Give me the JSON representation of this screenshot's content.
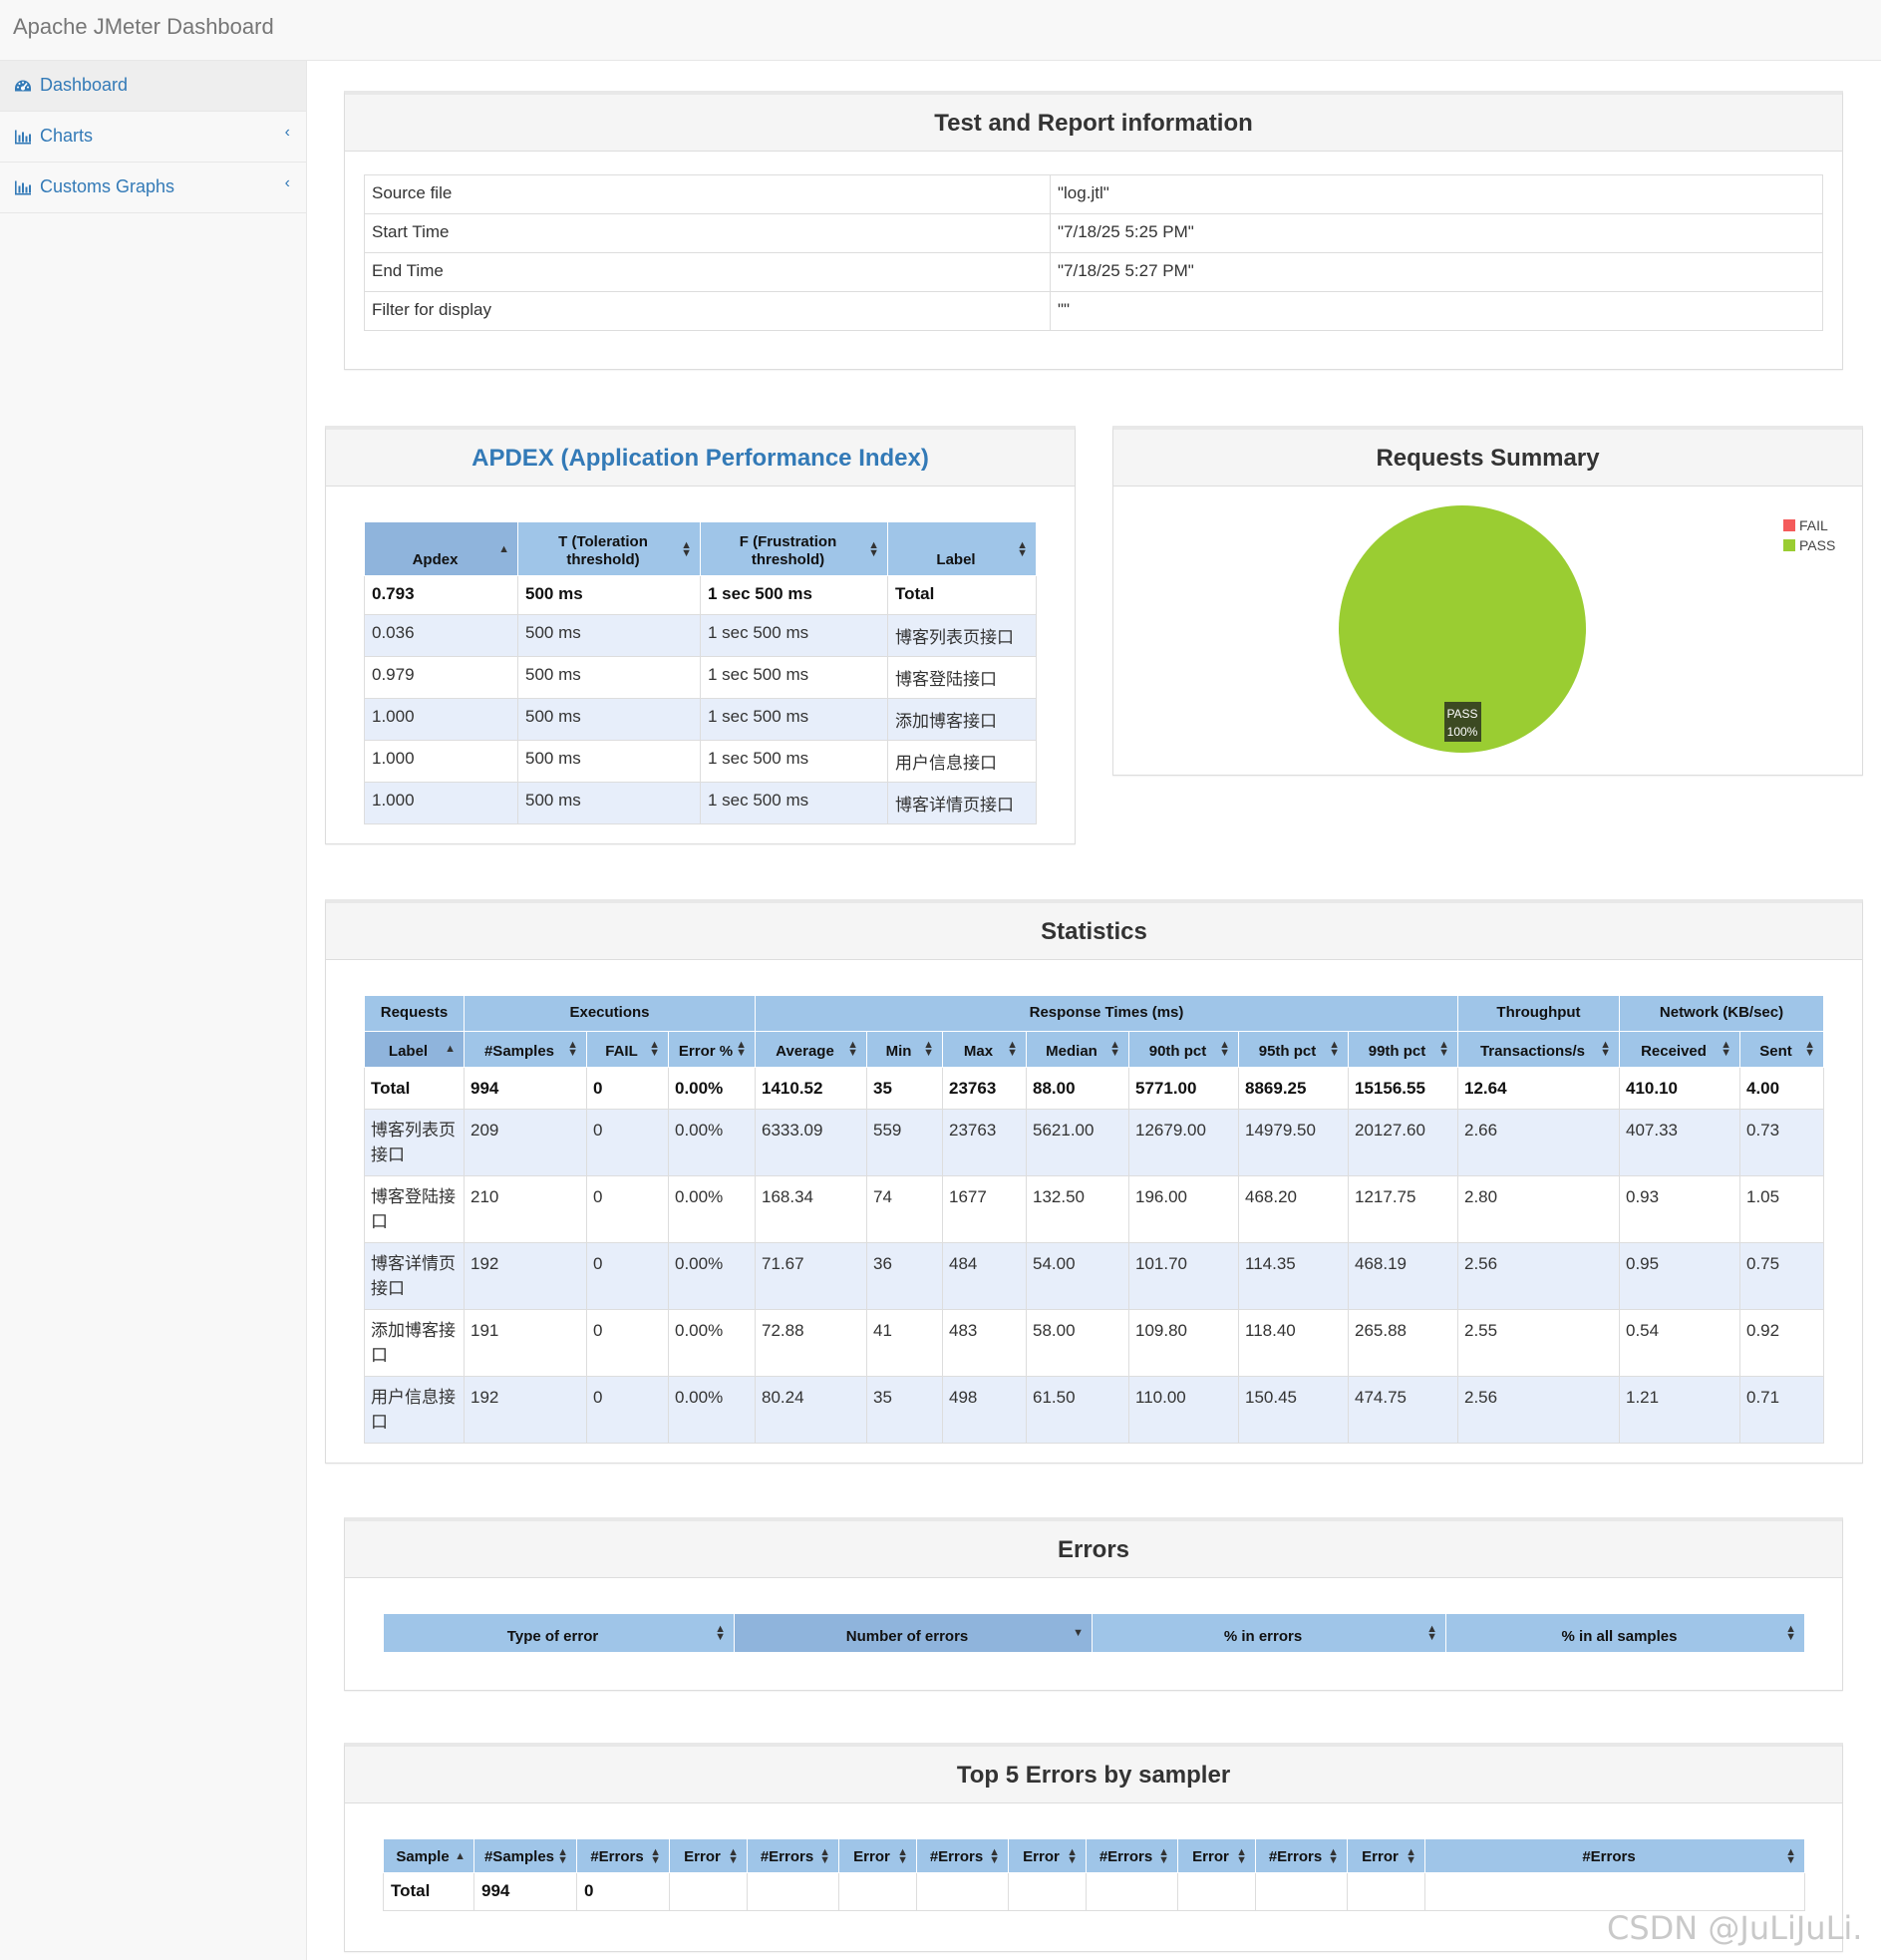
{
  "app": {
    "title": "Apache JMeter Dashboard"
  },
  "sidebar": {
    "items": [
      {
        "label": "Dashboard",
        "icon": "dashboard-icon"
      },
      {
        "label": "Charts",
        "icon": "bar-chart-icon"
      },
      {
        "label": "Customs Graphs",
        "icon": "bar-chart-icon"
      }
    ]
  },
  "info": {
    "title": "Test and Report information",
    "rows": [
      {
        "key": "Source file",
        "value": "\"log.jtl\""
      },
      {
        "key": "Start Time",
        "value": "\"7/18/25 5:25 PM\""
      },
      {
        "key": "End Time",
        "value": "\"7/18/25 5:27 PM\""
      },
      {
        "key": "Filter for display",
        "value": "\"\""
      }
    ]
  },
  "apdex": {
    "title": "APDEX (Application Performance Index)",
    "headers": [
      "Apdex",
      "T (Toleration threshold)",
      "F (Frustration threshold)",
      "Label"
    ],
    "rows": [
      [
        "0.793",
        "500 ms",
        "1 sec 500 ms",
        "Total"
      ],
      [
        "0.036",
        "500 ms",
        "1 sec 500 ms",
        "博客列表页接口"
      ],
      [
        "0.979",
        "500 ms",
        "1 sec 500 ms",
        "博客登陆接口"
      ],
      [
        "1.000",
        "500 ms",
        "1 sec 500 ms",
        "添加博客接口"
      ],
      [
        "1.000",
        "500 ms",
        "1 sec 500 ms",
        "用户信息接口"
      ],
      [
        "1.000",
        "500 ms",
        "1 sec 500 ms",
        "博客详情页接口"
      ]
    ]
  },
  "summary": {
    "title": "Requests Summary",
    "legend": [
      {
        "label": "FAIL",
        "color": "#f45b5b"
      },
      {
        "label": "PASS",
        "color": "#9acd32"
      }
    ],
    "slice_label_1": "PASS",
    "slice_label_2": "100%"
  },
  "chart_data": {
    "type": "pie",
    "categories": [
      "FAIL",
      "PASS"
    ],
    "values": [
      0,
      100
    ],
    "colors": [
      "#f45b5b",
      "#9acd32"
    ],
    "legend": "top-right"
  },
  "statistics": {
    "title": "Statistics",
    "groups": [
      "Requests",
      "Executions",
      "Response Times (ms)",
      "Throughput",
      "Network (KB/sec)"
    ],
    "headers": [
      "Label",
      "#Samples",
      "FAIL",
      "Error %",
      "Average",
      "Min",
      "Max",
      "Median",
      "90th pct",
      "95th pct",
      "99th pct",
      "Transactions/s",
      "Received",
      "Sent"
    ],
    "rows": [
      [
        "Total",
        "994",
        "0",
        "0.00%",
        "1410.52",
        "35",
        "23763",
        "88.00",
        "5771.00",
        "8869.25",
        "15156.55",
        "12.64",
        "410.10",
        "4.00"
      ],
      [
        "博客列表页接口",
        "209",
        "0",
        "0.00%",
        "6333.09",
        "559",
        "23763",
        "5621.00",
        "12679.00",
        "14979.50",
        "20127.60",
        "2.66",
        "407.33",
        "0.73"
      ],
      [
        "博客登陆接口",
        "210",
        "0",
        "0.00%",
        "168.34",
        "74",
        "1677",
        "132.50",
        "196.00",
        "468.20",
        "1217.75",
        "2.80",
        "0.93",
        "1.05"
      ],
      [
        "博客详情页接口",
        "192",
        "0",
        "0.00%",
        "71.67",
        "36",
        "484",
        "54.00",
        "101.70",
        "114.35",
        "468.19",
        "2.56",
        "0.95",
        "0.75"
      ],
      [
        "添加博客接口",
        "191",
        "0",
        "0.00%",
        "72.88",
        "41",
        "483",
        "58.00",
        "109.80",
        "118.40",
        "265.88",
        "2.55",
        "0.54",
        "0.92"
      ],
      [
        "用户信息接口",
        "192",
        "0",
        "0.00%",
        "80.24",
        "35",
        "498",
        "61.50",
        "110.00",
        "150.45",
        "474.75",
        "2.56",
        "1.21",
        "0.71"
      ]
    ]
  },
  "errors": {
    "title": "Errors",
    "headers": [
      "Type of error",
      "Number of errors",
      "% in errors",
      "% in all samples"
    ]
  },
  "top5": {
    "title": "Top 5 Errors by sampler",
    "headers": [
      "Sample",
      "#Samples",
      "#Errors",
      "Error",
      "#Errors",
      "Error",
      "#Errors",
      "Error",
      "#Errors",
      "Error",
      "#Errors",
      "Error",
      "#Errors"
    ],
    "rows": [
      [
        "Total",
        "994",
        "0",
        "",
        "",
        "",
        "",
        "",
        "",
        "",
        "",
        "",
        ""
      ]
    ]
  },
  "watermark": "CSDN @JuLiJuLi."
}
